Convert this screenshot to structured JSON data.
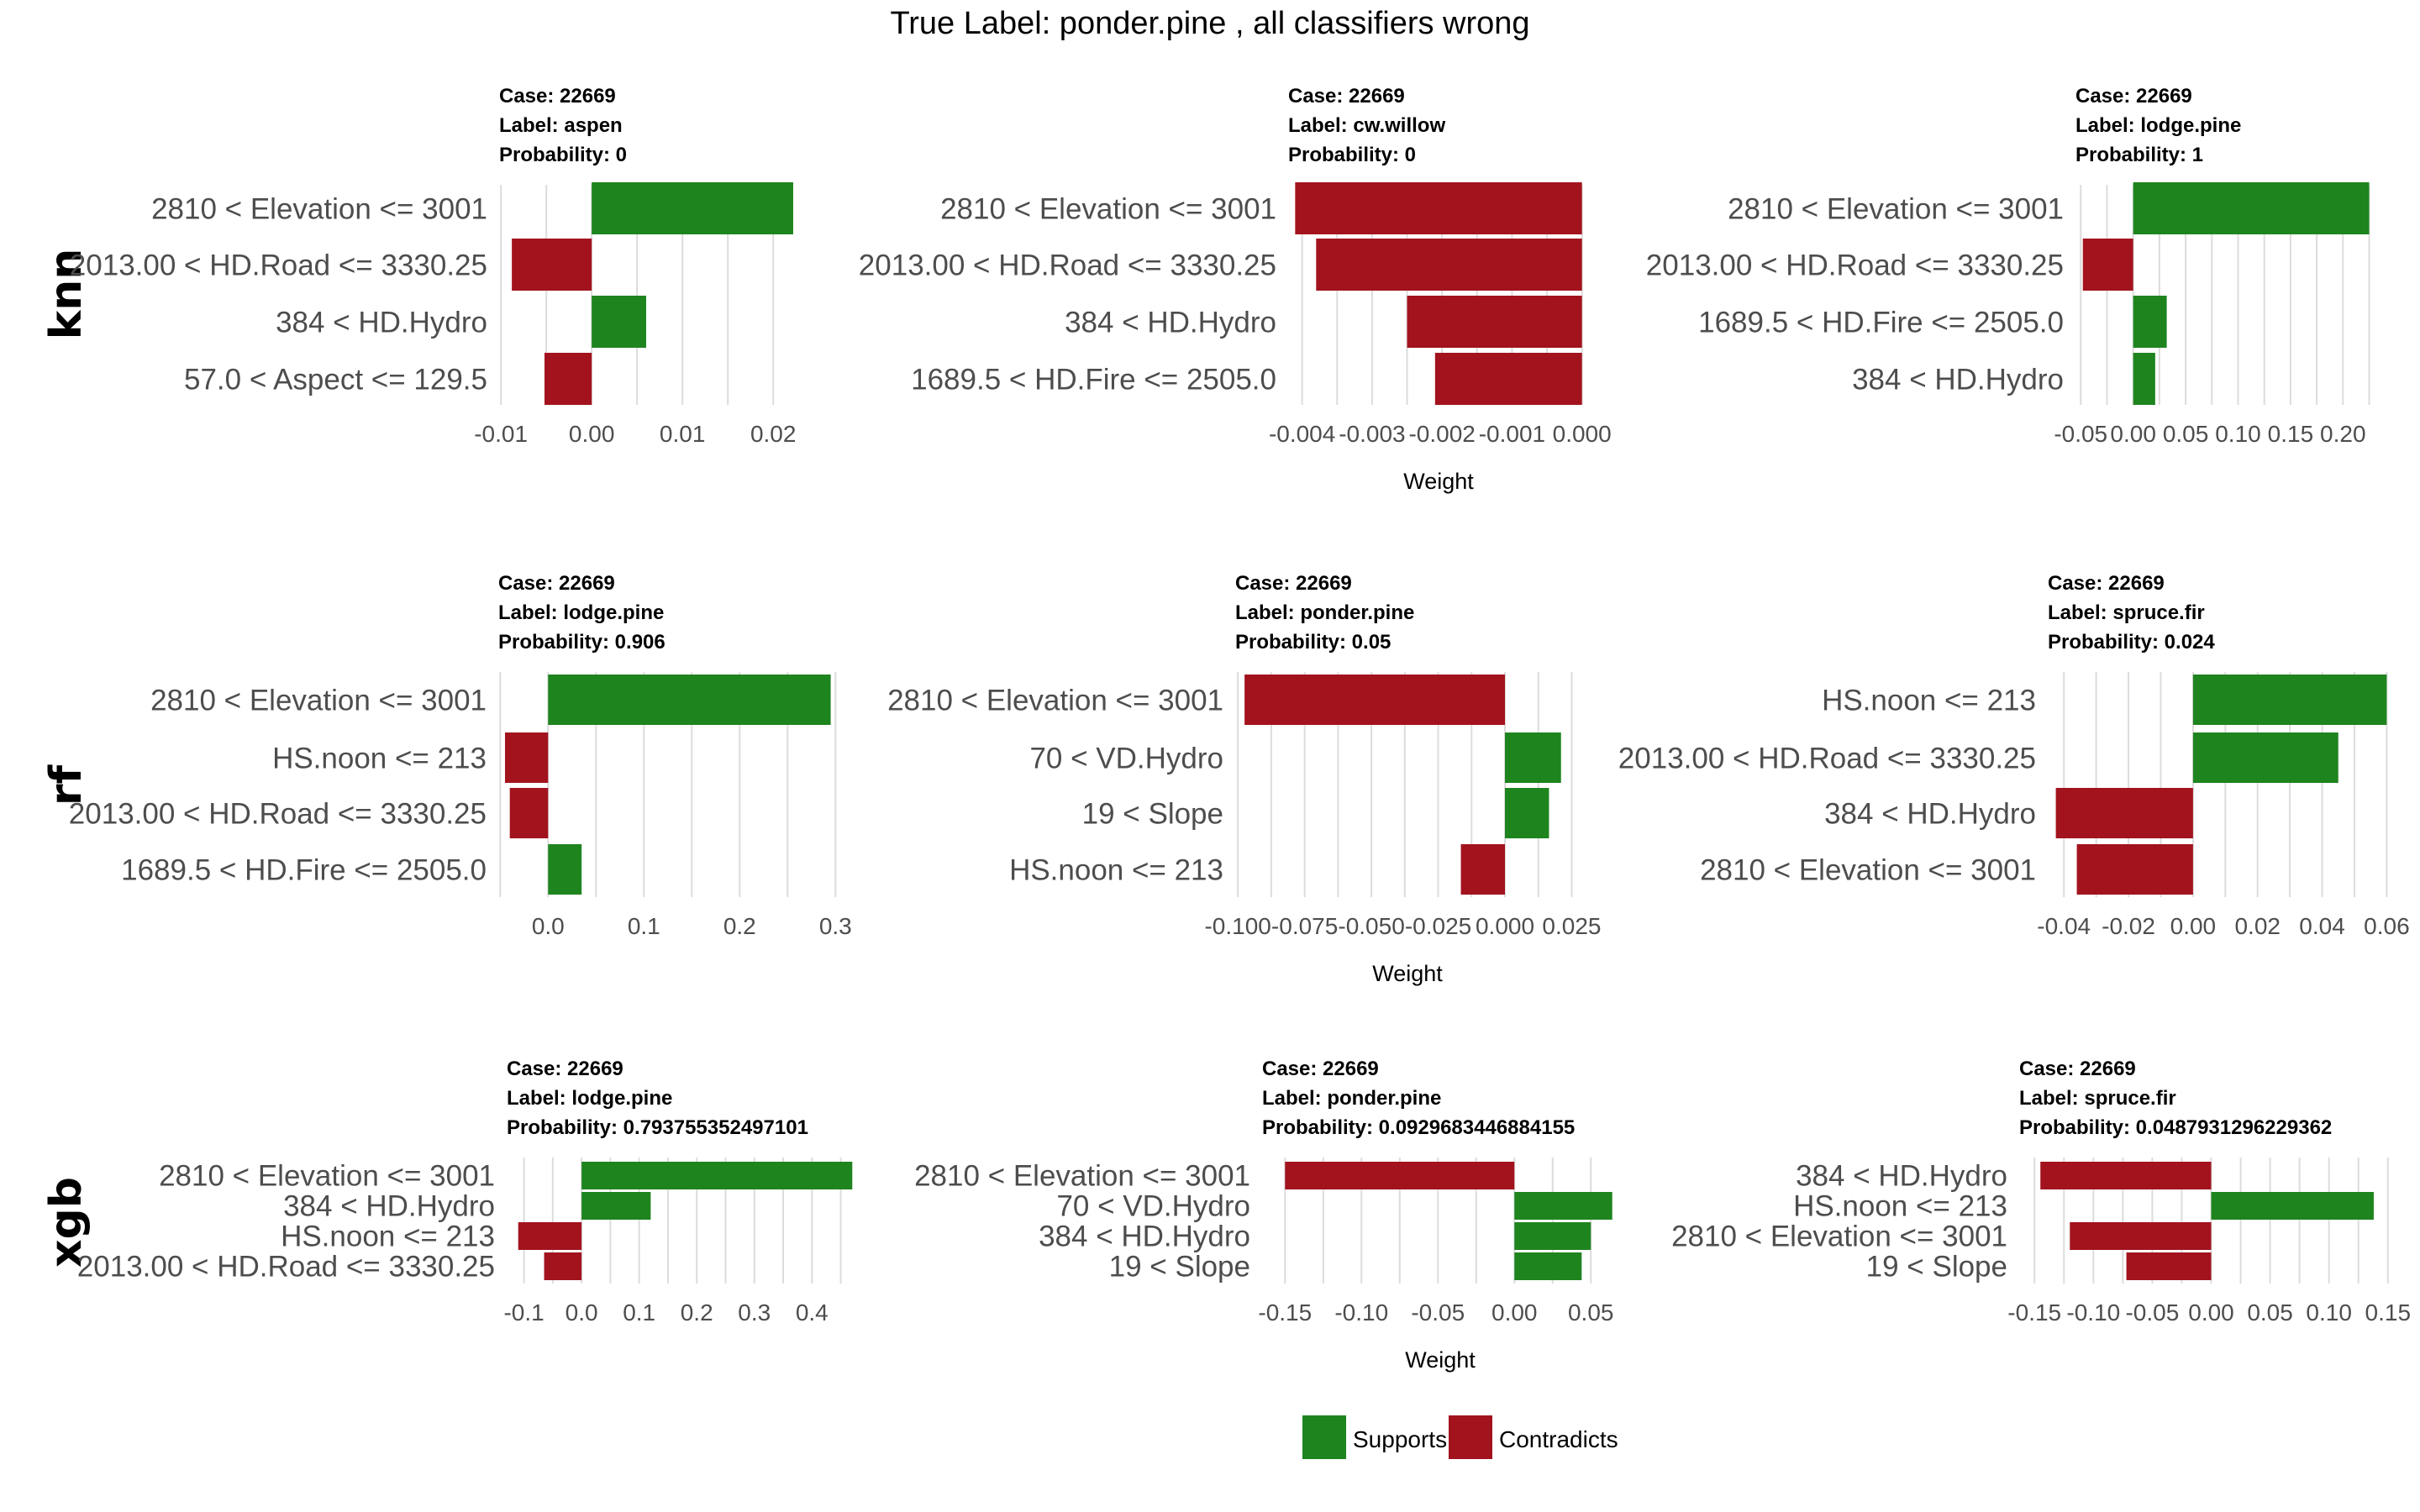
{
  "title": "True Label: ponder.pine , all classifiers wrong",
  "row_labels": [
    "knn",
    "rf",
    "xgb"
  ],
  "legend": {
    "supports_label": "Supports",
    "contradicts_label": "Contradicts",
    "supports_color": "#1e841e",
    "contradicts_color": "#a2131e"
  },
  "chart_data": [
    {
      "type": "bar",
      "orientation": "horizontal",
      "row": "knn",
      "case": "Case: 22669",
      "label": "Label: aspen",
      "probability": "Probability: 0",
      "categories": [
        "2810 < Elevation <= 3001",
        "2013.00 < HD.Road <= 3330.25",
        "384 < HD.Hydro",
        "57.0 < Aspect <= 129.5"
      ],
      "values": [
        0.0222,
        -0.0088,
        0.006,
        -0.0052
      ],
      "xlim": [
        -0.0102,
        0.0235
      ],
      "ticks": [
        -0.01,
        0.0,
        0.01,
        0.02
      ],
      "tick_labels": [
        "-0.01",
        "0.00",
        "0.01",
        "0.02"
      ],
      "xlabel": ""
    },
    {
      "type": "bar",
      "orientation": "horizontal",
      "row": "knn",
      "case": "Case: 22669",
      "label": "Label: cw.willow",
      "probability": "Probability: 0",
      "categories": [
        "2810 < Elevation <= 3001",
        "2013.00 < HD.Road <= 3330.25",
        "384 < HD.Hydro",
        "1689.5 < HD.Fire <= 2505.0"
      ],
      "values": [
        -0.0041,
        -0.0038,
        -0.0025,
        -0.0021
      ],
      "xlim": [
        -0.0042,
        0.0001
      ],
      "ticks": [
        -0.004,
        -0.003,
        -0.002,
        -0.001,
        0.0
      ],
      "tick_labels": [
        "-0.004",
        "-0.003",
        "-0.002",
        "-0.001",
        "0.000"
      ],
      "xlabel": "Weight"
    },
    {
      "type": "bar",
      "orientation": "horizontal",
      "row": "knn",
      "case": "Case: 22669",
      "label": "Label: lodge.pine",
      "probability": "Probability: 1",
      "categories": [
        "2810 < Elevation <= 3001",
        "2013.00 < HD.Road <= 3330.25",
        "1689.5 < HD.Fire <= 2505.0",
        "384 < HD.Hydro"
      ],
      "values": [
        0.225,
        -0.048,
        0.032,
        0.021
      ],
      "xlim": [
        -0.055,
        0.235
      ],
      "ticks": [
        -0.05,
        0.0,
        0.05,
        0.1,
        0.15,
        0.2
      ],
      "tick_labels": [
        "-0.05",
        "0.00",
        "0.05",
        "0.10",
        "0.15",
        "0.20"
      ],
      "xlabel": ""
    },
    {
      "type": "bar",
      "orientation": "horizontal",
      "row": "rf",
      "case": "Case: 22669",
      "label": "Label: lodge.pine",
      "probability": "Probability: 0.906",
      "categories": [
        "2810 < Elevation <= 3001",
        "HS.noon <= 213",
        "2013.00 < HD.Road <= 3330.25",
        "1689.5 < HD.Fire <= 2505.0"
      ],
      "values": [
        0.295,
        -0.045,
        -0.04,
        0.035
      ],
      "xlim": [
        -0.052,
        0.305
      ],
      "ticks": [
        0.0,
        0.1,
        0.2,
        0.3
      ],
      "tick_labels": [
        "0.0",
        "0.1",
        "0.2",
        "0.3"
      ],
      "xlabel": ""
    },
    {
      "type": "bar",
      "orientation": "horizontal",
      "row": "rf",
      "case": "Case: 22669",
      "label": "Label: ponder.pine",
      "probability": "Probability: 0.05",
      "categories": [
        "2810 < Elevation <= 3001",
        "70 < VD.Hydro",
        "19 < Slope",
        "HS.noon <= 213"
      ],
      "values": [
        -0.0975,
        0.021,
        0.0165,
        -0.0165
      ],
      "xlim": [
        -0.101,
        0.028
      ],
      "ticks": [
        -0.1,
        -0.075,
        -0.05,
        -0.025,
        0.0,
        0.025
      ],
      "tick_labels": [
        "-0.100",
        "-0.075",
        "-0.050",
        "-0.025",
        "0.000",
        "0.025"
      ],
      "xlabel": "Weight"
    },
    {
      "type": "bar",
      "orientation": "horizontal",
      "row": "rf",
      "case": "Case: 22669",
      "label": "Label: spruce.fir",
      "probability": "Probability: 0.024",
      "categories": [
        "HS.noon <= 213",
        "2013.00 < HD.Road <= 3330.25",
        "384 < HD.Hydro",
        "2810 < Elevation <= 3001"
      ],
      "values": [
        0.06,
        0.045,
        -0.0425,
        -0.036
      ],
      "xlim": [
        -0.045,
        0.0625
      ],
      "ticks": [
        -0.04,
        -0.02,
        0.0,
        0.02,
        0.04,
        0.06
      ],
      "tick_labels": [
        "-0.04",
        "-0.02",
        "0.00",
        "0.02",
        "0.04",
        "0.06"
      ],
      "xlabel": ""
    },
    {
      "type": "bar",
      "orientation": "horizontal",
      "row": "xgb",
      "case": "Case: 22669",
      "label": "Label: lodge.pine",
      "probability": "Probability: 0.793755352497101",
      "categories": [
        "2810 < Elevation <= 3001",
        "384 < HD.Hydro",
        "HS.noon <= 213",
        "2013.00 < HD.Road <= 3330.25"
      ],
      "values": [
        0.47,
        0.12,
        -0.11,
        -0.065
      ],
      "xlim": [
        -0.13,
        0.49
      ],
      "ticks": [
        -0.1,
        0.0,
        0.1,
        0.2,
        0.3,
        0.4
      ],
      "tick_labels": [
        "-0.1",
        "0.0",
        "0.1",
        "0.2",
        "0.3",
        "0.4"
      ],
      "xlabel": ""
    },
    {
      "type": "bar",
      "orientation": "horizontal",
      "row": "xgb",
      "case": "Case: 22669",
      "label": "Label: ponder.pine",
      "probability": "Probability: 0.0929683446884155",
      "categories": [
        "2810 < Elevation <= 3001",
        "70 < VD.Hydro",
        "384 < HD.Hydro",
        "19 < Slope"
      ],
      "values": [
        -0.15,
        0.064,
        0.05,
        0.044
      ],
      "xlim": [
        -0.165,
        0.068
      ],
      "ticks": [
        -0.15,
        -0.1,
        -0.05,
        0.0,
        0.05
      ],
      "tick_labels": [
        "-0.15",
        "-0.10",
        "-0.05",
        "0.00",
        "0.05"
      ],
      "xlabel": "Weight"
    },
    {
      "type": "bar",
      "orientation": "horizontal",
      "row": "xgb",
      "case": "Case: 22669",
      "label": "Label: spruce.fir",
      "probability": "Probability: 0.0487931296229362",
      "categories": [
        "384 < HD.Hydro",
        "HS.noon <= 213",
        "2810 < Elevation <= 3001",
        "19 < Slope"
      ],
      "values": [
        -0.145,
        0.138,
        -0.12,
        -0.072
      ],
      "xlim": [
        -0.163,
        0.163
      ],
      "ticks": [
        -0.15,
        -0.1,
        -0.05,
        0.0,
        0.05,
        0.1,
        0.15
      ],
      "tick_labels": [
        "-0.15",
        "-0.10",
        "-0.05",
        "0.00",
        "0.05",
        "0.10",
        "0.15"
      ],
      "xlabel": ""
    }
  ]
}
